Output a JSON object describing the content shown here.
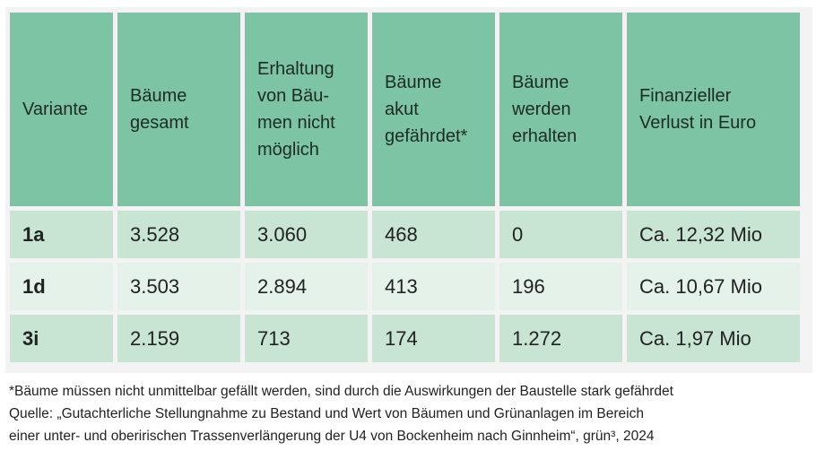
{
  "table": {
    "headers": [
      "Variante",
      "Bäume gesamt",
      "Erhaltung von Bäu-men nicht möglich",
      "Bäume akut gefährdet*",
      "Bäume werden erhalten",
      "Finanzieller Verlust in Euro"
    ],
    "header_lines": [
      [
        "Variante"
      ],
      [
        "Bäume",
        "gesamt"
      ],
      [
        "Erhaltung",
        "von Bäu-",
        "men nicht",
        "möglich"
      ],
      [
        "Bäume",
        "akut",
        "gefährdet*"
      ],
      [
        "Bäume",
        "werden",
        "erhalten"
      ],
      [
        "Finanzieller",
        "Verlust in Euro"
      ]
    ],
    "rows": [
      [
        "1a",
        "3.528",
        "3.060",
        "468",
        "0",
        "Ca. 12,32 Mio"
      ],
      [
        "1d",
        "3.503",
        "2.894",
        "413",
        "196",
        "Ca. 10,67 Mio"
      ],
      [
        "3i",
        "2.159",
        "713",
        "174",
        "1.272",
        "Ca. 1,97 Mio"
      ]
    ]
  },
  "footnote": "*Bäume müssen nicht unmittelbar gefällt werden, sind durch die Auswirkungen der Baustelle stark gefährdet",
  "source_line1": "Quelle: „Gutachterliche Stellungnahme zu Bestand und Wert von Bäumen und Grünanlagen im Bereich",
  "source_line2": "einer unter- und oberirischen Trassenverlängerung der U4 von Bockenheim nach Ginnheim“, grün³, 2024",
  "colors": {
    "header_bg": "#7cc4a4",
    "row_light": "#c8e5d3",
    "row_pale": "#e5f2ea"
  }
}
